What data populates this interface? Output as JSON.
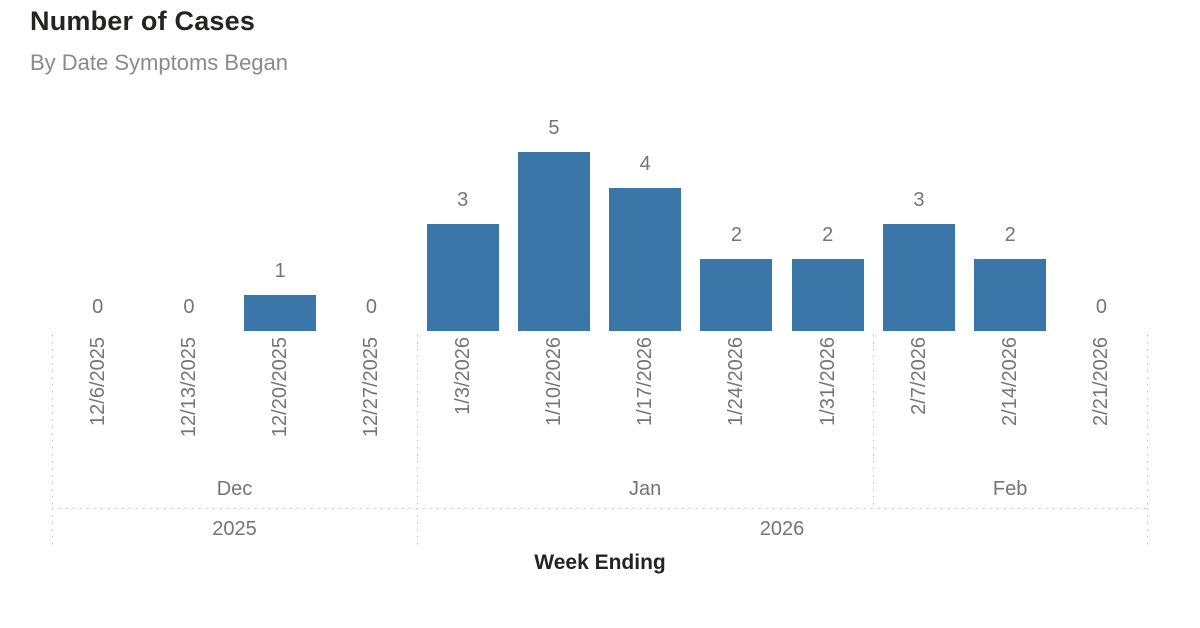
{
  "chart_data": {
    "type": "bar",
    "title": "Number of Cases",
    "subtitle": "By Date Symptoms Began",
    "xlabel": "Week Ending",
    "ylabel": "",
    "categories": [
      "12/6/2025",
      "12/13/2025",
      "12/20/2025",
      "12/27/2025",
      "1/3/2026",
      "1/10/2026",
      "1/17/2026",
      "1/24/2026",
      "1/31/2026",
      "2/7/2026",
      "2/14/2026",
      "2/21/2026"
    ],
    "values": [
      0,
      0,
      1,
      0,
      3,
      5,
      4,
      2,
      2,
      3,
      2,
      0
    ],
    "ylim": [
      0,
      5
    ],
    "data_labels": true,
    "legend": "none",
    "grid": "dotted group separator lines",
    "month_groups": [
      {
        "label": "Dec",
        "start": 0,
        "count": 4
      },
      {
        "label": "Jan",
        "start": 4,
        "count": 5
      },
      {
        "label": "Feb",
        "start": 9,
        "count": 3
      }
    ],
    "year_groups": [
      {
        "label": "2025",
        "start": 0,
        "count": 4
      },
      {
        "label": "2026",
        "start": 4,
        "count": 8
      }
    ],
    "colors": {
      "bar": "#3a76a8",
      "axis_text": "#757575",
      "separator": "#bdbdbd",
      "title": "#252423",
      "subtitle": "#8a8a8a",
      "xlabel": "#252423"
    }
  }
}
